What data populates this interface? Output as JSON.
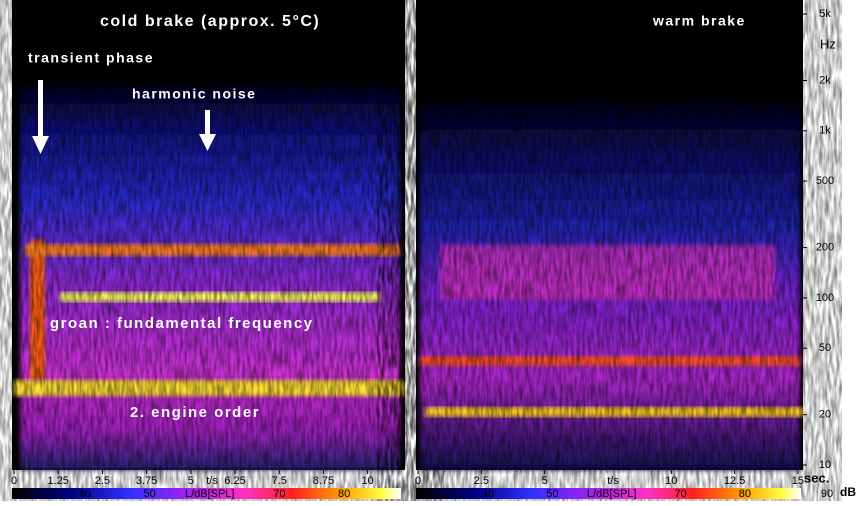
{
  "chart_data": [
    {
      "type": "spectrogram",
      "title": "cold brake (approx. 5°C)",
      "annotations": [
        "transient phase",
        "harmonic noise",
        "groan : fundamental frequency",
        "2. engine order"
      ],
      "xlim": [
        0,
        11
      ],
      "xticks": [
        0,
        1.25,
        2.5,
        3.75,
        5,
        6.25,
        7.5,
        8.75,
        10
      ],
      "x_label": "t/s",
      "clim": [
        30,
        90
      ],
      "cticks": [
        30,
        40,
        50,
        70,
        80
      ],
      "c_label": "L/dB[SPL]"
    },
    {
      "type": "spectrogram",
      "title": "warm brake",
      "xlim": [
        0,
        15.2
      ],
      "xticks": [
        0,
        2.5,
        5,
        10,
        12.5,
        15
      ],
      "x_label": "t/s",
      "x_unit": "sec.",
      "ylim": [
        10,
        5000
      ],
      "log_y": true,
      "y_label": "Hz",
      "yticks": [
        10,
        20,
        50,
        100,
        200,
        500,
        {
          "value": 1000,
          "label": "1k"
        },
        {
          "value": 2000,
          "label": "2k"
        },
        {
          "value": 5000,
          "label": "5k"
        }
      ],
      "clim": [
        30,
        90
      ],
      "cticks": [
        30,
        40,
        50,
        70,
        80,
        90
      ],
      "c_label": "L/dB[SPL]",
      "c_unit": "dB"
    }
  ]
}
